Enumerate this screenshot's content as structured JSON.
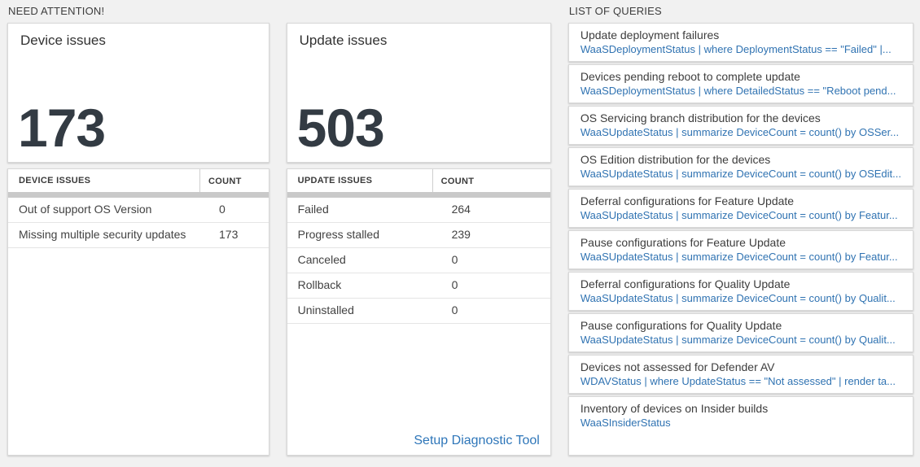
{
  "colors": {
    "page_bg": "#f1f1f1",
    "card_border": "#d8d8d8",
    "thick_bar": "#c9c9c9",
    "big_number": "#333b43",
    "query_link_blue": "#3073b2",
    "setup_link_blue": "#2e76b9"
  },
  "need_attention": {
    "header": "NEED ATTENTION!",
    "device_card": {
      "title": "Device issues",
      "value": "173"
    },
    "device_table": {
      "columns": [
        "DEVICE ISSUES",
        "COUNT"
      ],
      "rows": [
        [
          "Out of support OS Version",
          "0"
        ],
        [
          "Missing multiple security updates",
          "173"
        ]
      ]
    },
    "update_card": {
      "title": "Update issues",
      "value": "503"
    },
    "update_table": {
      "columns": [
        "UPDATE ISSUES",
        "COUNT"
      ],
      "rows": [
        [
          "Failed",
          "264"
        ],
        [
          "Progress stalled",
          "239"
        ],
        [
          "Canceled",
          "0"
        ],
        [
          "Rollback",
          "0"
        ],
        [
          "Uninstalled",
          "0"
        ]
      ]
    },
    "setup_link": "Setup Diagnostic Tool"
  },
  "queries": {
    "header": "LIST OF QUERIES",
    "items": [
      {
        "title": "Update deployment failures",
        "query": "WaaSDeploymentStatus | where DeploymentStatus == \"Failed\" |..."
      },
      {
        "title": "Devices pending reboot to complete update",
        "query": "WaaSDeploymentStatus | where DetailedStatus == \"Reboot pend..."
      },
      {
        "title": "OS Servicing branch distribution for the devices",
        "query": "WaaSUpdateStatus | summarize DeviceCount = count() by OSSer..."
      },
      {
        "title": "OS Edition distribution for the devices",
        "query": "WaaSUpdateStatus | summarize DeviceCount = count() by OSEdit..."
      },
      {
        "title": "Deferral configurations for Feature Update",
        "query": "WaaSUpdateStatus | summarize DeviceCount = count() by Featur..."
      },
      {
        "title": "Pause configurations for Feature Update",
        "query": "WaaSUpdateStatus | summarize DeviceCount = count() by Featur..."
      },
      {
        "title": "Deferral configurations for Quality Update",
        "query": "WaaSUpdateStatus | summarize DeviceCount = count() by Qualit..."
      },
      {
        "title": "Pause configurations for Quality Update",
        "query": "WaaSUpdateStatus | summarize DeviceCount = count() by Qualit..."
      },
      {
        "title": "Devices not assessed for Defender AV",
        "query": "WDAVStatus | where UpdateStatus == \"Not assessed\" | render ta..."
      },
      {
        "title": "Inventory of devices on Insider builds",
        "query": "WaaSInsiderStatus"
      }
    ]
  }
}
